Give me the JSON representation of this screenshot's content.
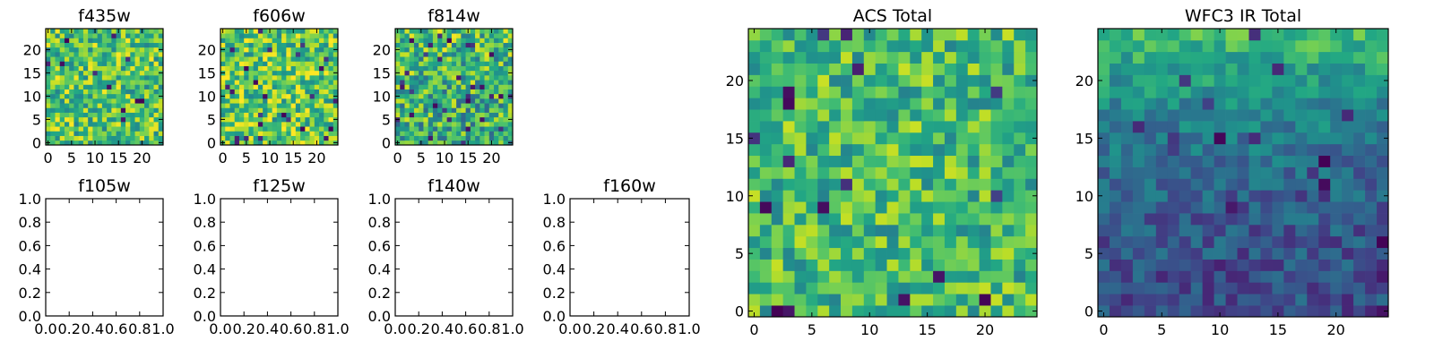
{
  "chart_data": [
    {
      "id": "f435w",
      "type": "heatmap",
      "title": "f435w",
      "grid_size": 25,
      "colormap": "viridis",
      "xlim": [
        -0.5,
        24.5
      ],
      "ylim": [
        -0.5,
        24.5
      ],
      "xticks": [
        0,
        5,
        10,
        15,
        20
      ],
      "yticks": [
        0,
        5,
        10,
        15,
        20
      ],
      "value_range": [
        0,
        1
      ],
      "mean_level": 0.72,
      "noise": 0.28,
      "gradient": 0
    },
    {
      "id": "f606w",
      "type": "heatmap",
      "title": "f606w",
      "grid_size": 25,
      "colormap": "viridis",
      "xlim": [
        -0.5,
        24.5
      ],
      "ylim": [
        -0.5,
        24.5
      ],
      "xticks": [
        0,
        5,
        10,
        15,
        20
      ],
      "yticks": [
        0,
        5,
        10,
        15,
        20
      ],
      "value_range": [
        0,
        1
      ],
      "mean_level": 0.74,
      "noise": 0.28,
      "gradient": 0
    },
    {
      "id": "f814w",
      "type": "heatmap",
      "title": "f814w",
      "grid_size": 25,
      "colormap": "viridis",
      "xlim": [
        -0.5,
        24.5
      ],
      "ylim": [
        -0.5,
        24.5
      ],
      "xticks": [
        0,
        5,
        10,
        15,
        20
      ],
      "yticks": [
        0,
        5,
        10,
        15,
        20
      ],
      "value_range": [
        0,
        1
      ],
      "mean_level": 0.66,
      "noise": 0.3,
      "gradient": 0.1
    },
    {
      "id": "f105w",
      "type": "empty",
      "title": "f105w",
      "xlim": [
        0,
        1
      ],
      "ylim": [
        0,
        1
      ],
      "xtick_labels": [
        "0.0",
        "0.2",
        "0.4",
        "0.6",
        "0.8",
        "1.0"
      ],
      "ytick_labels": [
        "0.0",
        "0.2",
        "0.4",
        "0.6",
        "0.8",
        "1.0"
      ]
    },
    {
      "id": "f125w",
      "type": "empty",
      "title": "f125w",
      "xlim": [
        0,
        1
      ],
      "ylim": [
        0,
        1
      ],
      "xtick_labels": [
        "0.0",
        "0.2",
        "0.4",
        "0.6",
        "0.8",
        "1.0"
      ],
      "ytick_labels": [
        "0.0",
        "0.2",
        "0.4",
        "0.6",
        "0.8",
        "1.0"
      ]
    },
    {
      "id": "f140w",
      "type": "empty",
      "title": "f140w",
      "xlim": [
        0,
        1
      ],
      "ylim": [
        0,
        1
      ],
      "xtick_labels": [
        "0.0",
        "0.2",
        "0.4",
        "0.6",
        "0.8",
        "1.0"
      ],
      "ytick_labels": [
        "0.0",
        "0.2",
        "0.4",
        "0.6",
        "0.8",
        "1.0"
      ]
    },
    {
      "id": "f160w",
      "type": "empty",
      "title": "f160w",
      "xlim": [
        0,
        1
      ],
      "ylim": [
        0,
        1
      ],
      "xtick_labels": [
        "0.0",
        "0.2",
        "0.4",
        "0.6",
        "0.8",
        "1.0"
      ],
      "ytick_labels": [
        "0.0",
        "0.2",
        "0.4",
        "0.6",
        "0.8",
        "1.0"
      ]
    },
    {
      "id": "acs-total",
      "type": "heatmap",
      "title": "ACS Total",
      "grid_size": 25,
      "colormap": "viridis",
      "xlim": [
        -0.5,
        24.5
      ],
      "ylim": [
        -0.5,
        24.5
      ],
      "xticks": [
        0,
        5,
        10,
        15,
        20
      ],
      "yticks": [
        0,
        5,
        10,
        15,
        20
      ],
      "value_range": [
        0,
        1
      ],
      "mean_level": 0.68,
      "noise": 0.24,
      "gradient": 0
    },
    {
      "id": "wfc3-ir-total",
      "type": "heatmap",
      "title": "WFC3 IR Total",
      "grid_size": 25,
      "colormap": "viridis",
      "xlim": [
        -0.5,
        24.5
      ],
      "ylim": [
        -0.5,
        24.5
      ],
      "xticks": [
        0,
        5,
        10,
        15,
        20
      ],
      "yticks": [
        0,
        5,
        10,
        15,
        20
      ],
      "value_range": [
        0,
        1
      ],
      "mean_level": 0.42,
      "noise": 0.14,
      "gradient": 0.5
    }
  ]
}
